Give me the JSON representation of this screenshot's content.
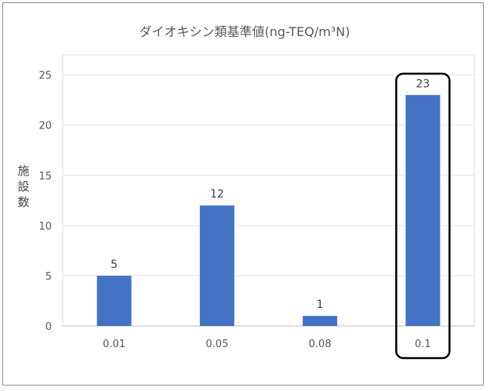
{
  "chart_data": {
    "type": "bar",
    "title": "ダイオキシン類基準値(ng-TEQ/m³N)",
    "xlabel": "",
    "ylabel": "施設数",
    "categories": [
      "0.01",
      "0.05",
      "0.08",
      "0.1"
    ],
    "values": [
      5,
      12,
      1,
      23
    ],
    "ylim": [
      0,
      27
    ],
    "yticks": [
      0,
      5,
      10,
      15,
      20,
      25
    ],
    "grid": true,
    "legend": "none",
    "bar_color": "#4472c4",
    "highlighted_category": "0.1"
  }
}
